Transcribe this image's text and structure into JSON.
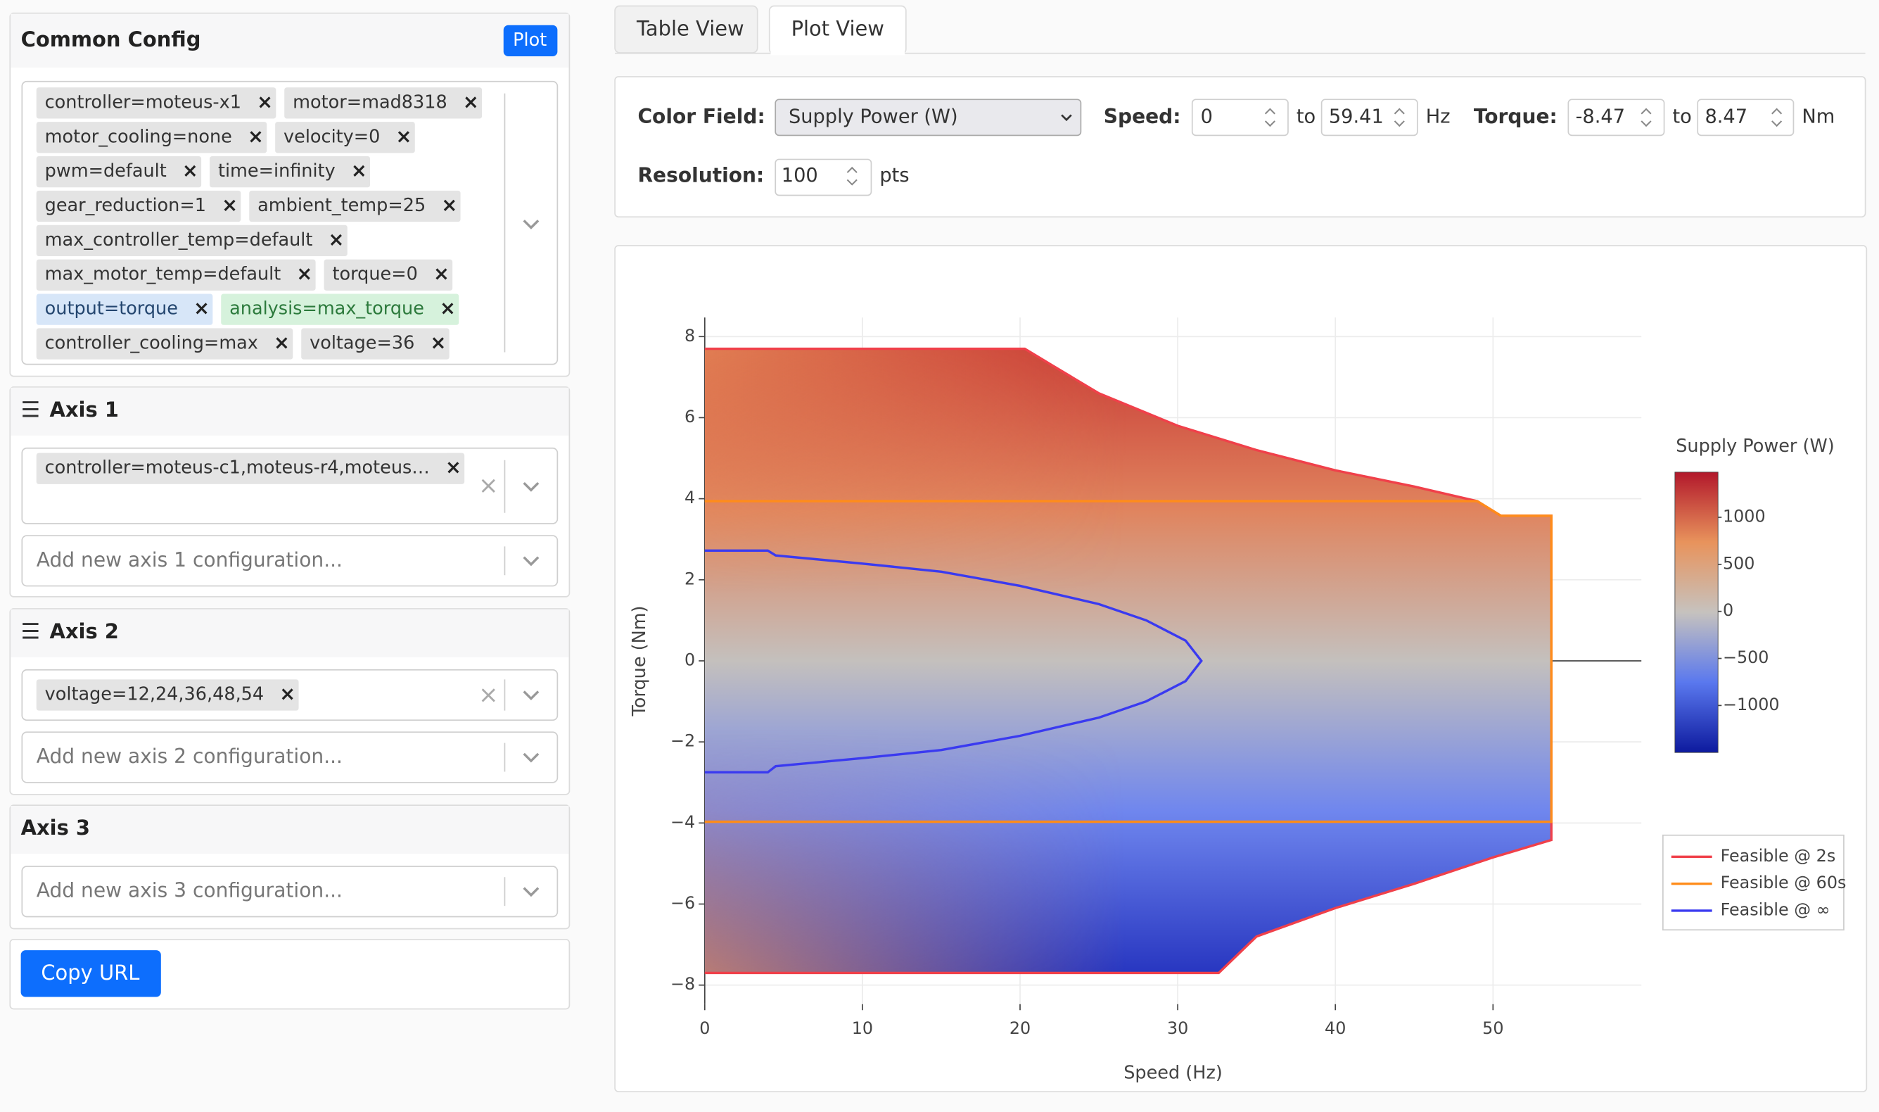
{
  "sidebar": {
    "common": {
      "title": "Common Config",
      "button": "Plot",
      "tags": [
        "controller=moteus-x1",
        "motor=mad8318",
        "motor_cooling=none",
        "velocity=0",
        "pwm=default",
        "time=infinity",
        "gear_reduction=1",
        "ambient_temp=25",
        "max_controller_temp=default",
        "max_motor_temp=default",
        "torque=0",
        "output=torque",
        "analysis=max_torque",
        "controller_cooling=max",
        "voltage=36"
      ]
    },
    "axes": [
      {
        "title": "Axis 1",
        "tags": [
          "controller=moteus-c1,moteus-r4,moteus…"
        ],
        "placeholder": "Add new axis 1 configuration..."
      },
      {
        "title": "Axis 2",
        "tags": [
          "voltage=12,24,36,48,54"
        ],
        "placeholder": "Add new axis 2 configuration..."
      },
      {
        "title": "Axis 3",
        "tags": [],
        "placeholder": "Add new axis 3 configuration..."
      }
    ],
    "copy_button": "Copy URL"
  },
  "tabs": [
    "Table View",
    "Plot View"
  ],
  "controls": {
    "color_field_label": "Color Field:",
    "color_field": "Supply Power (W)",
    "speed_label": "Speed:",
    "speed_min": "0",
    "to": "to",
    "speed_max": "59.41",
    "speed_unit": "Hz",
    "torque_label": "Torque:",
    "torque_min": "-8.47",
    "torque_max": "8.47",
    "torque_unit": "Nm",
    "resolution_label": "Resolution:",
    "resolution": "100",
    "resolution_unit": "pts"
  },
  "chart_data": {
    "type": "heatmap",
    "x_label": "Speed (Hz)",
    "y_label": "Torque (Nm)",
    "xlim": [
      0,
      59.41
    ],
    "ylim": [
      -8.47,
      8.47
    ],
    "xticks": [
      0,
      10,
      20,
      30,
      40,
      50
    ],
    "yticks": [
      {
        "value": -8,
        "label": "−8"
      },
      {
        "value": -6,
        "label": "−6"
      },
      {
        "value": -4,
        "label": "−4"
      },
      {
        "value": -2,
        "label": "−2"
      },
      0,
      2,
      4,
      6,
      8
    ],
    "grid": true,
    "colorbar": {
      "title": "Supply Power (W)",
      "clim": [
        -1500,
        1480
      ],
      "ticks": [
        1000,
        500,
        0,
        {
          "value": -500,
          "label": "−500"
        },
        {
          "value": -1000,
          "label": "−1000"
        }
      ],
      "colors": [
        "#0d1a9e",
        "#5a78ee",
        "#c6c2be",
        "#e8935c",
        "#b2182b"
      ]
    },
    "series": [
      {
        "name": "Feasible @ 2s",
        "color": "#f0404a",
        "x": [
          0,
          20.3,
          22,
          25,
          30,
          35,
          40,
          45,
          49,
          50.5,
          53.7,
          53.7,
          50,
          45,
          40,
          35,
          32.6,
          0
        ],
        "y": [
          7.7,
          7.7,
          7.3,
          6.6,
          5.8,
          5.2,
          4.7,
          4.3,
          3.94,
          3.58,
          3.58,
          -4.42,
          -4.85,
          -5.5,
          -6.1,
          -6.8,
          -7.7,
          -7.7
        ]
      },
      {
        "name": "Feasible @ 60s",
        "color": "#ff8c1a",
        "x": [
          0,
          49,
          50.5,
          53.7,
          53.7,
          0
        ],
        "y": [
          3.94,
          3.94,
          3.58,
          3.58,
          -3.97,
          -3.97
        ]
      },
      {
        "name": "Feasible @ ∞",
        "color": "#3a3af0",
        "x": [
          0,
          4,
          4.5,
          10,
          15,
          20,
          25,
          28,
          30.5,
          31.5,
          30.5,
          28,
          25,
          20,
          15,
          10,
          4.5,
          4,
          0
        ],
        "y": [
          2.72,
          2.72,
          2.6,
          2.4,
          2.2,
          1.85,
          1.4,
          1.0,
          0.5,
          0,
          -0.5,
          -1.0,
          -1.4,
          -1.85,
          -2.2,
          -2.4,
          -2.6,
          -2.75,
          -2.75
        ]
      }
    ]
  }
}
